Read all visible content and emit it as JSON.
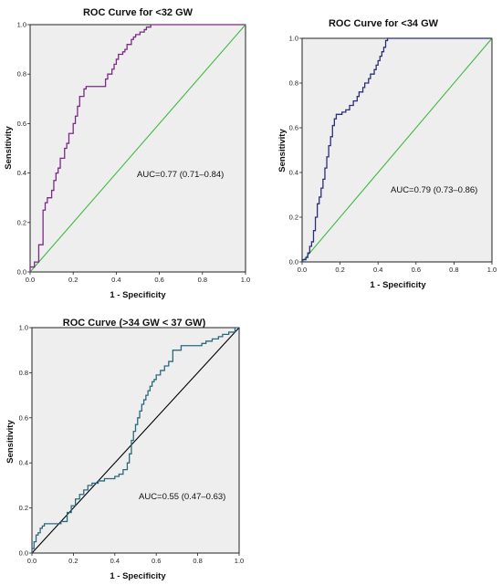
{
  "chart_data": [
    {
      "type": "line",
      "title": "ROC Curve for <32 GW",
      "xlabel": "1 - Specificity",
      "ylabel": "Sensitivity",
      "xlim": [
        0,
        1
      ],
      "ylim": [
        0,
        1
      ],
      "ticks": [
        "0.0",
        "0.2",
        "0.4",
        "0.6",
        "0.8",
        "1.0"
      ],
      "grid": false,
      "annotation": "AUC=0.77 (0.71–0.84)",
      "colors": {
        "curve": "#7b2a86",
        "reference": "#3dbb3d"
      },
      "series": [
        {
          "x": [
            0,
            0,
            0.02,
            0.02,
            0.04,
            0.04,
            0.06,
            0.06,
            0.07,
            0.07,
            0.08,
            0.08,
            0.1,
            0.1,
            0.11,
            0.11,
            0.12,
            0.12,
            0.13,
            0.13,
            0.14,
            0.14,
            0.16,
            0.16,
            0.17,
            0.17,
            0.18,
            0.18,
            0.2,
            0.2,
            0.21,
            0.21,
            0.22,
            0.22,
            0.23,
            0.23,
            0.25,
            0.25,
            0.26,
            0.26,
            0.27,
            0.27,
            0.35,
            0.35,
            0.36,
            0.36,
            0.38,
            0.38,
            0.39,
            0.39,
            0.4,
            0.4,
            0.41,
            0.41,
            0.43,
            0.43,
            0.44,
            0.44,
            0.45,
            0.45,
            0.47,
            0.47,
            0.48,
            0.48,
            0.49,
            0.49,
            0.51,
            0.51,
            0.53,
            0.53,
            0.54,
            0.54,
            0.56,
            0.56,
            0.57,
            0.57,
            1
          ],
          "y": [
            0,
            0.02,
            0.02,
            0.04,
            0.04,
            0.11,
            0.11,
            0.25,
            0.25,
            0.28,
            0.28,
            0.3,
            0.3,
            0.33,
            0.33,
            0.37,
            0.37,
            0.4,
            0.4,
            0.42,
            0.42,
            0.46,
            0.46,
            0.5,
            0.5,
            0.52,
            0.52,
            0.56,
            0.56,
            0.6,
            0.6,
            0.63,
            0.63,
            0.67,
            0.67,
            0.71,
            0.71,
            0.74,
            0.74,
            0.75,
            0.75,
            0.75,
            0.75,
            0.78,
            0.78,
            0.8,
            0.8,
            0.82,
            0.82,
            0.84,
            0.84,
            0.86,
            0.86,
            0.88,
            0.88,
            0.89,
            0.89,
            0.9,
            0.9,
            0.92,
            0.92,
            0.94,
            0.94,
            0.95,
            0.95,
            0.96,
            0.96,
            0.97,
            0.97,
            0.98,
            0.98,
            0.99,
            0.99,
            1,
            1,
            1,
            1
          ]
        },
        {
          "x": [
            0,
            1
          ],
          "y": [
            0,
            1
          ]
        }
      ]
    },
    {
      "type": "line",
      "title": "ROC Curve for <34 GW",
      "xlabel": "1 - Specificity",
      "ylabel": "Sensitivity",
      "xlim": [
        0,
        1
      ],
      "ylim": [
        0,
        1
      ],
      "ticks": [
        "0.0",
        "0.2",
        "0.4",
        "0.6",
        "0.8",
        "1.0"
      ],
      "grid": false,
      "annotation": "AUC=0.79 (0.73–0.86)",
      "colors": {
        "curve": "#2b2f7a",
        "reference": "#3dbb3d"
      },
      "series": [
        {
          "x": [
            0,
            0,
            0.02,
            0.02,
            0.03,
            0.03,
            0.04,
            0.04,
            0.05,
            0.05,
            0.06,
            0.06,
            0.07,
            0.07,
            0.08,
            0.08,
            0.09,
            0.09,
            0.1,
            0.1,
            0.11,
            0.11,
            0.12,
            0.12,
            0.13,
            0.13,
            0.14,
            0.14,
            0.15,
            0.15,
            0.16,
            0.16,
            0.17,
            0.17,
            0.18,
            0.18,
            0.19,
            0.19,
            0.21,
            0.21,
            0.23,
            0.23,
            0.25,
            0.25,
            0.27,
            0.27,
            0.29,
            0.29,
            0.3,
            0.3,
            0.32,
            0.32,
            0.33,
            0.33,
            0.35,
            0.35,
            0.36,
            0.36,
            0.38,
            0.38,
            0.39,
            0.39,
            0.4,
            0.4,
            0.41,
            0.41,
            0.42,
            0.42,
            0.43,
            0.43,
            0.44,
            0.44,
            0.45,
            0.45,
            1
          ],
          "y": [
            0,
            0.01,
            0.01,
            0.02,
            0.02,
            0.04,
            0.04,
            0.07,
            0.07,
            0.09,
            0.09,
            0.14,
            0.14,
            0.2,
            0.2,
            0.26,
            0.26,
            0.29,
            0.29,
            0.33,
            0.33,
            0.37,
            0.37,
            0.42,
            0.42,
            0.47,
            0.47,
            0.52,
            0.52,
            0.56,
            0.56,
            0.61,
            0.61,
            0.64,
            0.64,
            0.66,
            0.66,
            0.66,
            0.66,
            0.67,
            0.67,
            0.68,
            0.68,
            0.7,
            0.7,
            0.72,
            0.72,
            0.74,
            0.74,
            0.76,
            0.76,
            0.78,
            0.78,
            0.8,
            0.8,
            0.82,
            0.82,
            0.84,
            0.84,
            0.86,
            0.86,
            0.88,
            0.88,
            0.9,
            0.9,
            0.92,
            0.92,
            0.94,
            0.94,
            0.96,
            0.96,
            0.99,
            0.99,
            1,
            1
          ]
        },
        {
          "x": [
            0,
            1
          ],
          "y": [
            0,
            1
          ]
        }
      ]
    },
    {
      "type": "line",
      "title": "ROC Curve (>34 GW < 37 GW)",
      "xlabel": "1 - Specificity",
      "ylabel": "Sensitivity",
      "xlim": [
        0,
        1
      ],
      "ylim": [
        0,
        1
      ],
      "ticks": [
        "0.0",
        "0.2",
        "0.4",
        "0.6",
        "0.8",
        "1.0"
      ],
      "grid": false,
      "annotation": "AUC=0.55 (0.47–0.63)",
      "colors": {
        "curve": "#2a6a7e",
        "reference": "#000000"
      },
      "series": [
        {
          "x": [
            0,
            0,
            0.01,
            0.01,
            0.02,
            0.02,
            0.03,
            0.03,
            0.04,
            0.04,
            0.05,
            0.05,
            0.06,
            0.06,
            0.14,
            0.14,
            0.17,
            0.17,
            0.19,
            0.19,
            0.21,
            0.21,
            0.23,
            0.23,
            0.25,
            0.25,
            0.27,
            0.27,
            0.29,
            0.29,
            0.32,
            0.32,
            0.35,
            0.35,
            0.37,
            0.37,
            0.4,
            0.4,
            0.42,
            0.42,
            0.44,
            0.44,
            0.46,
            0.46,
            0.47,
            0.47,
            0.48,
            0.48,
            0.49,
            0.49,
            0.5,
            0.5,
            0.51,
            0.51,
            0.52,
            0.52,
            0.53,
            0.53,
            0.54,
            0.54,
            0.55,
            0.55,
            0.56,
            0.56,
            0.57,
            0.57,
            0.58,
            0.58,
            0.59,
            0.59,
            0.6,
            0.6,
            0.62,
            0.62,
            0.64,
            0.64,
            0.66,
            0.66,
            0.68,
            0.68,
            0.72,
            0.72,
            0.82,
            0.82,
            0.84,
            0.84,
            0.87,
            0.87,
            0.9,
            0.9,
            0.92,
            0.92,
            0.95,
            0.95,
            0.98,
            0.98,
            1
          ],
          "y": [
            0,
            0.02,
            0.02,
            0.05,
            0.05,
            0.08,
            0.08,
            0.09,
            0.09,
            0.11,
            0.11,
            0.12,
            0.12,
            0.13,
            0.13,
            0.14,
            0.14,
            0.18,
            0.18,
            0.21,
            0.21,
            0.24,
            0.24,
            0.26,
            0.26,
            0.28,
            0.28,
            0.3,
            0.3,
            0.31,
            0.31,
            0.32,
            0.32,
            0.33,
            0.33,
            0.33,
            0.33,
            0.34,
            0.34,
            0.35,
            0.35,
            0.37,
            0.37,
            0.4,
            0.4,
            0.44,
            0.44,
            0.5,
            0.5,
            0.54,
            0.54,
            0.57,
            0.57,
            0.6,
            0.6,
            0.63,
            0.63,
            0.66,
            0.66,
            0.68,
            0.68,
            0.7,
            0.7,
            0.72,
            0.72,
            0.74,
            0.74,
            0.76,
            0.76,
            0.77,
            0.77,
            0.79,
            0.79,
            0.81,
            0.81,
            0.83,
            0.83,
            0.85,
            0.85,
            0.9,
            0.9,
            0.92,
            0.92,
            0.93,
            0.93,
            0.94,
            0.94,
            0.95,
            0.95,
            0.96,
            0.96,
            0.97,
            0.97,
            0.98,
            0.98,
            1,
            1
          ]
        },
        {
          "x": [
            0,
            1
          ],
          "y": [
            0,
            1
          ]
        }
      ]
    }
  ]
}
